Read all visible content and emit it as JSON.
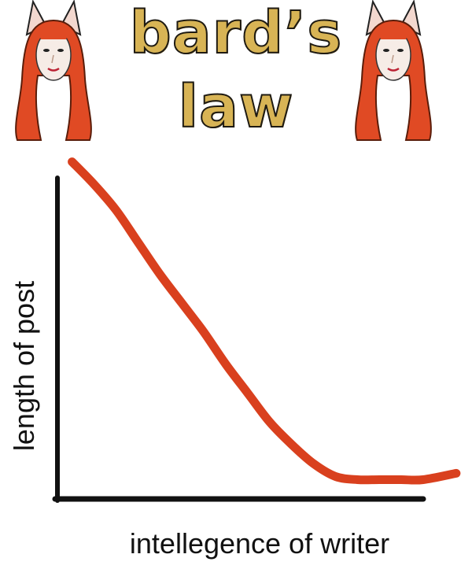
{
  "title": {
    "line1": "bard’s",
    "line2": "law"
  },
  "colors": {
    "curve": "#d9401e",
    "title_fill": "#d8b455",
    "hair": "#e04a24",
    "axis": "#111111"
  },
  "icons": {
    "left": "fox-eared-woman-icon",
    "right": "fox-eared-woman-icon"
  },
  "chart_data": {
    "type": "line",
    "title": "bard’s law",
    "xlabel": "intellegence of writer",
    "ylabel": "length of post",
    "xlim": [
      0,
      100
    ],
    "ylim": [
      0,
      100
    ],
    "grid": false,
    "series": [
      {
        "values": [
          {
            "x": 4,
            "y": 105
          },
          {
            "x": 10,
            "y": 98
          },
          {
            "x": 16,
            "y": 90
          },
          {
            "x": 22,
            "y": 80
          },
          {
            "x": 28,
            "y": 70
          },
          {
            "x": 34,
            "y": 61
          },
          {
            "x": 40,
            "y": 52
          },
          {
            "x": 46,
            "y": 42
          },
          {
            "x": 52,
            "y": 33
          },
          {
            "x": 58,
            "y": 24
          },
          {
            "x": 64,
            "y": 17
          },
          {
            "x": 70,
            "y": 11
          },
          {
            "x": 76,
            "y": 7
          },
          {
            "x": 82,
            "y": 6
          },
          {
            "x": 88,
            "y": 6
          },
          {
            "x": 94,
            "y": 6
          },
          {
            "x": 100,
            "y": 6
          },
          {
            "x": 109,
            "y": 8
          }
        ]
      }
    ]
  }
}
